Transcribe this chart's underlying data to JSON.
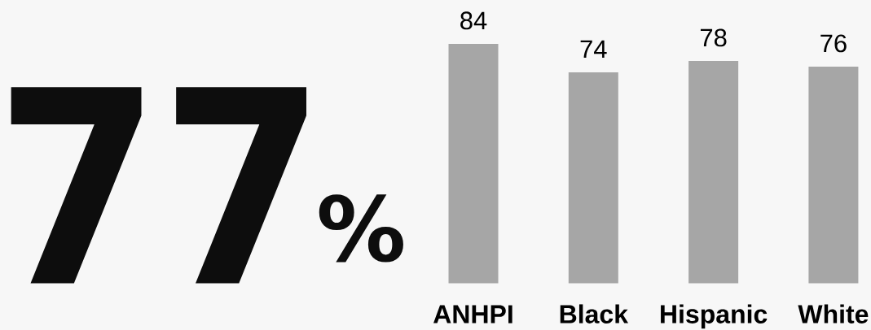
{
  "chart_data": {
    "type": "bar",
    "annotations": [
      "77",
      "%"
    ],
    "categories": [
      "ANHPI",
      "Black",
      "Hispanic",
      "White"
    ],
    "values": [
      84,
      74,
      78,
      76
    ],
    "color": "#a6a6a6",
    "data_labels": true,
    "tick_labels": "x"
  }
}
